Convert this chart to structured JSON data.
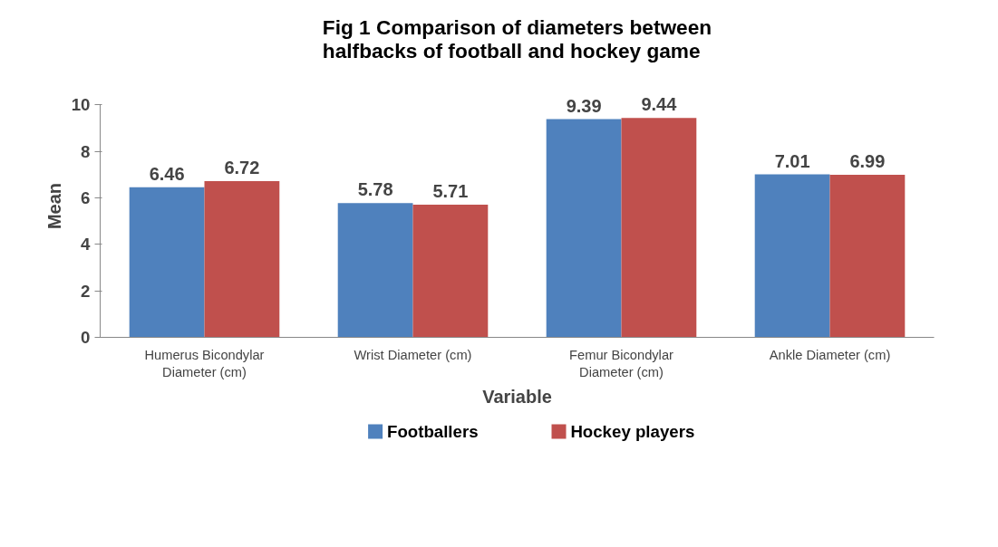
{
  "chart_data": {
    "type": "bar",
    "title": "Fig 1 Comparison of diameters between halfbacks of football and hockey game",
    "xlabel": "Variable",
    "ylabel": "Mean",
    "categories": [
      "Humerus Bicondylar Diameter (cm)",
      "Wrist Diameter (cm)",
      "Femur Bicondylar Diameter (cm)",
      "Ankle Diameter (cm)"
    ],
    "series": [
      {
        "name": "Footballers",
        "color": "#4f81bd",
        "values": [
          6.46,
          5.78,
          9.39,
          7.01
        ]
      },
      {
        "name": "Hockey players",
        "color": "#c0504d",
        "values": [
          6.72,
          5.71,
          9.44,
          6.99
        ]
      }
    ],
    "ylim": [
      0,
      10
    ],
    "yticks": [
      0,
      2,
      4,
      6,
      8,
      10
    ],
    "grid": false,
    "legend": "bottom",
    "data_labels": true
  }
}
